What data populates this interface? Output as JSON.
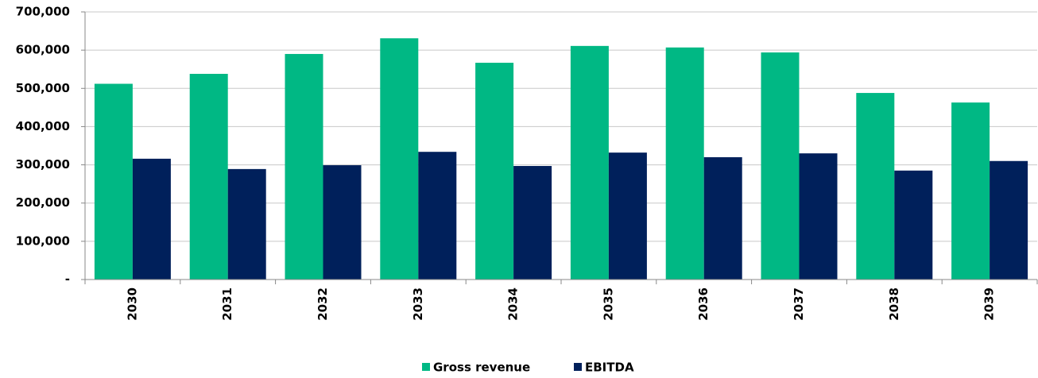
{
  "chart_data": {
    "type": "bar",
    "categories": [
      "2030",
      "2031",
      "2032",
      "2033",
      "2034",
      "2035",
      "2036",
      "2037",
      "2038",
      "2039"
    ],
    "series": [
      {
        "name": "Gross revenue",
        "color": "#00b884",
        "values": [
          512000,
          538000,
          590000,
          631000,
          567000,
          611000,
          607000,
          594000,
          488000,
          463000
        ]
      },
      {
        "name": "EBITDA",
        "color": "#00205b",
        "values": [
          316000,
          289000,
          299000,
          334000,
          297000,
          332000,
          320000,
          330000,
          285000,
          310000
        ]
      }
    ],
    "ylim": [
      0,
      700000
    ],
    "yticks": [
      {
        "value": 0,
        "label": "-"
      },
      {
        "value": 100000,
        "label": "100,000"
      },
      {
        "value": 200000,
        "label": "200,000"
      },
      {
        "value": 300000,
        "label": "300,000"
      },
      {
        "value": 400000,
        "label": "400,000"
      },
      {
        "value": 500000,
        "label": "500,000"
      },
      {
        "value": 600000,
        "label": "600,000"
      },
      {
        "value": 700000,
        "label": "700,000"
      }
    ],
    "grid": true,
    "legend": "bottom"
  }
}
